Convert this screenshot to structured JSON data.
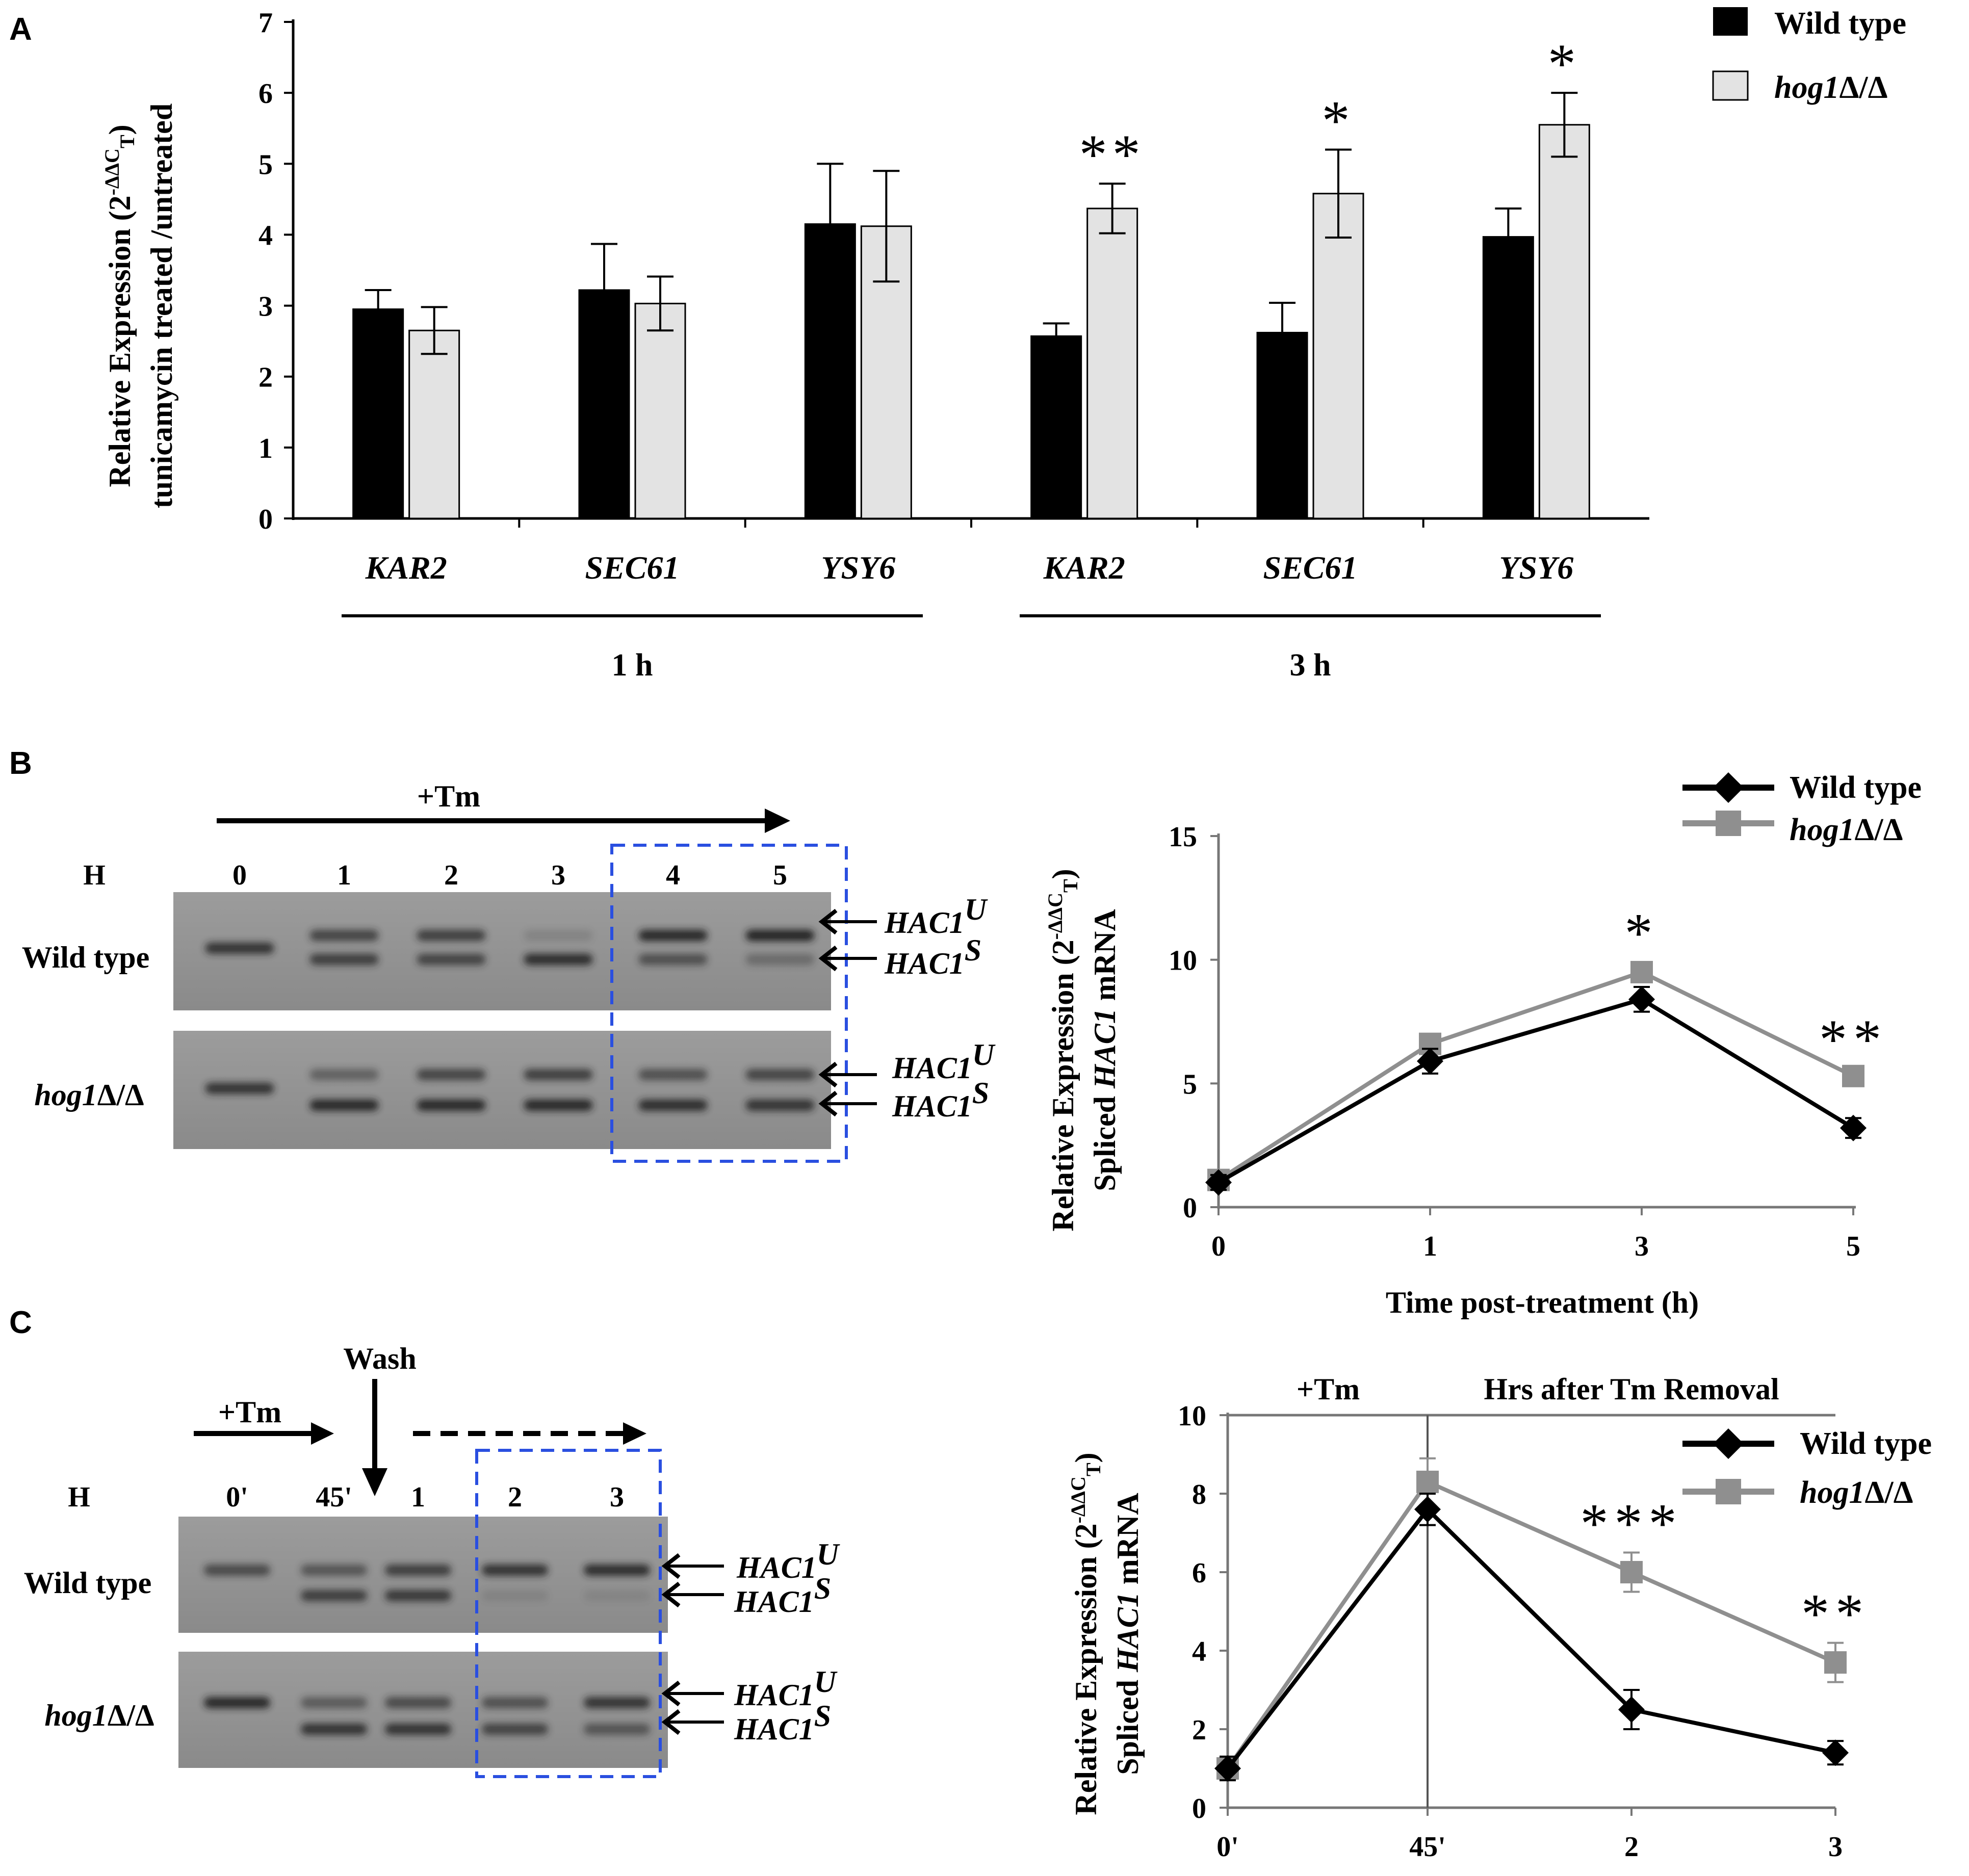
{
  "panels": {
    "a": "A",
    "b": "B",
    "c": "C"
  },
  "colors": {
    "wild_type": "#000000",
    "hog1": "#8f8f8f",
    "bar_hog1": "#e3e3e3",
    "box": "#2a4fe0"
  },
  "chart_data": [
    {
      "id": "A",
      "type": "bar",
      "ylabel_line1": "Relative Expression (2",
      "ylabel_sup": "-ΔΔC",
      "ylabel_sub": "T",
      "ylabel_close": ")",
      "ylabel_line2": "tunicamycin treated /untreated",
      "ylim": [
        0,
        7
      ],
      "yticks": [
        "0",
        "1",
        "2",
        "3",
        "4",
        "5",
        "6",
        "7"
      ],
      "categories": [
        "KAR2",
        "SEC61",
        "YSY6",
        "KAR2",
        "SEC61",
        "YSY6"
      ],
      "groups": [
        {
          "label": "1 h",
          "from": 0,
          "to": 2
        },
        {
          "label": "3 h",
          "from": 3,
          "to": 5
        }
      ],
      "series": [
        {
          "name": "Wild type",
          "values": [
            2.95,
            3.22,
            4.15,
            2.57,
            2.62,
            3.97
          ],
          "errors": [
            0.27,
            0.65,
            0.85,
            0.18,
            0.42,
            0.4
          ]
        },
        {
          "name": "hog1",
          "name_suffix": "Δ/Δ",
          "values": [
            2.65,
            3.03,
            4.12,
            4.37,
            4.58,
            5.55
          ],
          "errors": [
            0.33,
            0.38,
            0.78,
            0.35,
            0.62,
            0.45
          ]
        }
      ],
      "annotations": [
        "",
        "",
        "",
        "**",
        "*",
        "*"
      ],
      "legend": "top-right"
    },
    {
      "id": "B",
      "type": "line",
      "ylabel_line1": "Relative Expression (2",
      "ylabel_sup": "-ΔΔC",
      "ylabel_sub": "T",
      "ylabel_close": ")",
      "ylabel_line2a": "Spliced ",
      "ylabel_line2b": "HAC1",
      "ylabel_line2c": " mRNA",
      "xlabel": "Time post-treatment (h)",
      "x": [
        0,
        1,
        3,
        5
      ],
      "xticks": [
        "0",
        "1",
        "3",
        "5"
      ],
      "ylim": [
        0,
        15
      ],
      "yticks": [
        "0",
        "5",
        "10",
        "15"
      ],
      "series": [
        {
          "name": "Wild type",
          "values": [
            1.0,
            5.9,
            8.4,
            3.2
          ],
          "errors": [
            0.3,
            0.5,
            0.5,
            0.4
          ]
        },
        {
          "name": "hog1",
          "name_suffix": "Δ/Δ",
          "values": [
            1.1,
            6.6,
            9.5,
            5.3
          ],
          "errors": [
            0.3,
            0.3,
            0.4,
            0.3
          ]
        }
      ],
      "annotations": [
        "",
        "",
        "*",
        "**"
      ],
      "legend": "top-right"
    },
    {
      "id": "C",
      "type": "line",
      "ylabel_line1": "Relative Expression (2",
      "ylabel_sup": "-ΔΔC",
      "ylabel_sub": "T",
      "ylabel_close": ")",
      "ylabel_line2a": "Spliced ",
      "ylabel_line2b": "HAC1",
      "ylabel_line2c": " mRNA",
      "xticks": [
        "0'",
        "45'",
        "2",
        "3"
      ],
      "ylim": [
        0,
        10
      ],
      "yticks": [
        "0",
        "2",
        "4",
        "6",
        "8",
        "10"
      ],
      "region_labels": [
        "+Tm",
        "Hrs after Tm Removal"
      ],
      "series": [
        {
          "name": "Wild type",
          "values": [
            1.0,
            7.6,
            2.5,
            1.4
          ],
          "errors": [
            0.3,
            0.4,
            0.5,
            0.3
          ]
        },
        {
          "name": "hog1",
          "name_suffix": "Δ/Δ",
          "values": [
            1.0,
            8.3,
            6.0,
            3.7
          ],
          "errors": [
            0.3,
            0.6,
            0.5,
            0.5
          ]
        }
      ],
      "annotations": [
        "",
        "",
        "***",
        "**"
      ],
      "legend": "top-right"
    }
  ],
  "gel_b": {
    "treatment": "+Tm",
    "lane_header": "H",
    "lanes": [
      "0",
      "1",
      "2",
      "3",
      "4",
      "5"
    ],
    "rows": [
      "Wild type",
      "hog1"
    ],
    "row_suffix": "Δ/Δ",
    "band_u": "HAC1",
    "band_u_sup": "U",
    "band_s": "HAC1",
    "band_s_sup": "S"
  },
  "gel_c": {
    "treatment": "+Tm",
    "wash": "Wash",
    "lane_header": "H",
    "lanes": [
      "0'",
      "45'",
      "1",
      "2",
      "3"
    ],
    "rows": [
      "Wild type",
      "hog1"
    ],
    "row_suffix": "Δ/Δ",
    "band_u": "HAC1",
    "band_u_sup": "U",
    "band_s": "HAC1",
    "band_s_sup": "S"
  }
}
